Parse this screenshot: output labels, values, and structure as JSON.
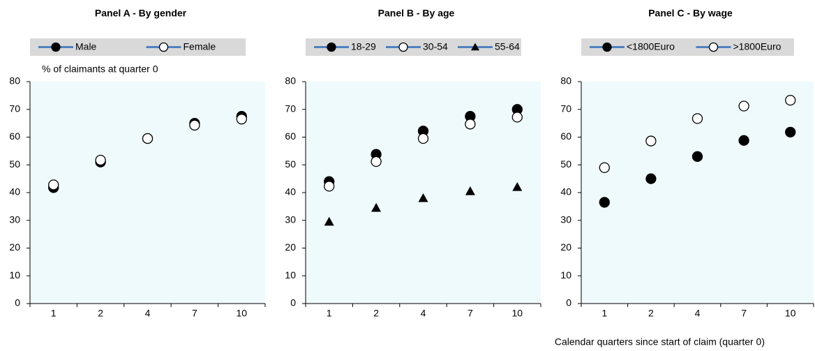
{
  "chart_data": [
    {
      "type": "line",
      "title": "Panel A - By gender",
      "y_label": "% of  claimants at quarter 0",
      "categories": [
        "1",
        "2",
        "4",
        "7",
        "10"
      ],
      "series": [
        {
          "name": "Male",
          "color": "#4f81bd",
          "marker": "filled-circle",
          "values": [
            41.8,
            51,
            59.5,
            65,
            67.5
          ]
        },
        {
          "name": "Female",
          "color": "#4f81bd",
          "marker": "open-circle",
          "values": [
            42.8,
            51.7,
            59.5,
            64.3,
            66.5
          ]
        }
      ],
      "ylim": [
        0,
        80
      ],
      "yticks": [
        0,
        10,
        20,
        30,
        40,
        50,
        60,
        70,
        80
      ],
      "grid": false,
      "plot_background": "#effafd"
    },
    {
      "type": "line",
      "title": "Panel B - By age",
      "categories": [
        "1",
        "2",
        "4",
        "7",
        "10"
      ],
      "series": [
        {
          "name": "18-29",
          "color": "#4f81bd",
          "marker": "filled-circle",
          "values": [
            44,
            53.8,
            62.2,
            67.5,
            70
          ]
        },
        {
          "name": "30-54",
          "color": "#4f81bd",
          "marker": "open-circle",
          "values": [
            42.3,
            51.2,
            59.5,
            64.7,
            67.2
          ]
        },
        {
          "name": "55-64",
          "color": "#4f81bd",
          "marker": "triangle",
          "values": [
            29.5,
            34.5,
            38,
            40.5,
            42
          ]
        }
      ],
      "ylim": [
        0,
        80
      ],
      "yticks": [
        0,
        10,
        20,
        30,
        40,
        50,
        60,
        70,
        80
      ],
      "grid": false,
      "plot_background": "#effafd"
    },
    {
      "type": "line",
      "title": "Panel C - By wage",
      "x_label": "Calendar quarters since start of claim  (quarter 0)",
      "categories": [
        "1",
        "2",
        "4",
        "7",
        "10"
      ],
      "series": [
        {
          "name": "<1800Euro",
          "color": "#4f81bd",
          "marker": "filled-circle",
          "values": [
            36.5,
            45,
            53,
            58.8,
            61.8
          ]
        },
        {
          "name": ">1800Euro",
          "color": "#4f81bd",
          "marker": "open-circle",
          "values": [
            49,
            58.6,
            66.7,
            71.2,
            73.3
          ]
        }
      ],
      "ylim": [
        0,
        80
      ],
      "yticks": [
        0,
        10,
        20,
        30,
        40,
        50,
        60,
        70,
        80
      ],
      "grid": false,
      "plot_background": "#effafd"
    }
  ]
}
